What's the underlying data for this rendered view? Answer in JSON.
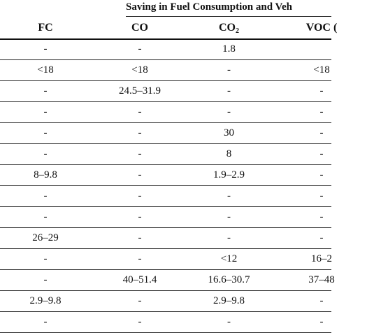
{
  "group_header": "Saving in Fuel Consumption and Veh",
  "columns": [
    {
      "main": "FC",
      "sub": ""
    },
    {
      "main": "CO",
      "sub": ""
    },
    {
      "main": "CO",
      "sub": "2"
    },
    {
      "main": "VOC (",
      "sub": ""
    }
  ],
  "rows": [
    [
      "-",
      "-",
      "1.8",
      ""
    ],
    [
      "<18",
      "<18",
      "-",
      "<18"
    ],
    [
      "-",
      "24.5–31.9",
      "-",
      "-"
    ],
    [
      "-",
      "-",
      "-",
      "-"
    ],
    [
      "-",
      "-",
      "30",
      "-"
    ],
    [
      "-",
      "-",
      "8",
      "-"
    ],
    [
      "8–9.8",
      "-",
      "1.9–2.9",
      "-"
    ],
    [
      "-",
      "-",
      "-",
      "-"
    ],
    [
      "-",
      "-",
      "-",
      "-"
    ],
    [
      "26–29",
      "-",
      "-",
      "-"
    ],
    [
      "-",
      "-",
      "<12",
      "16–2"
    ],
    [
      "-",
      "40–51.4",
      "16.6–30.7",
      "37–48"
    ],
    [
      "2.9–9.8",
      "-",
      "2.9–9.8",
      "-"
    ],
    [
      "-",
      "-",
      "-",
      "-"
    ]
  ]
}
